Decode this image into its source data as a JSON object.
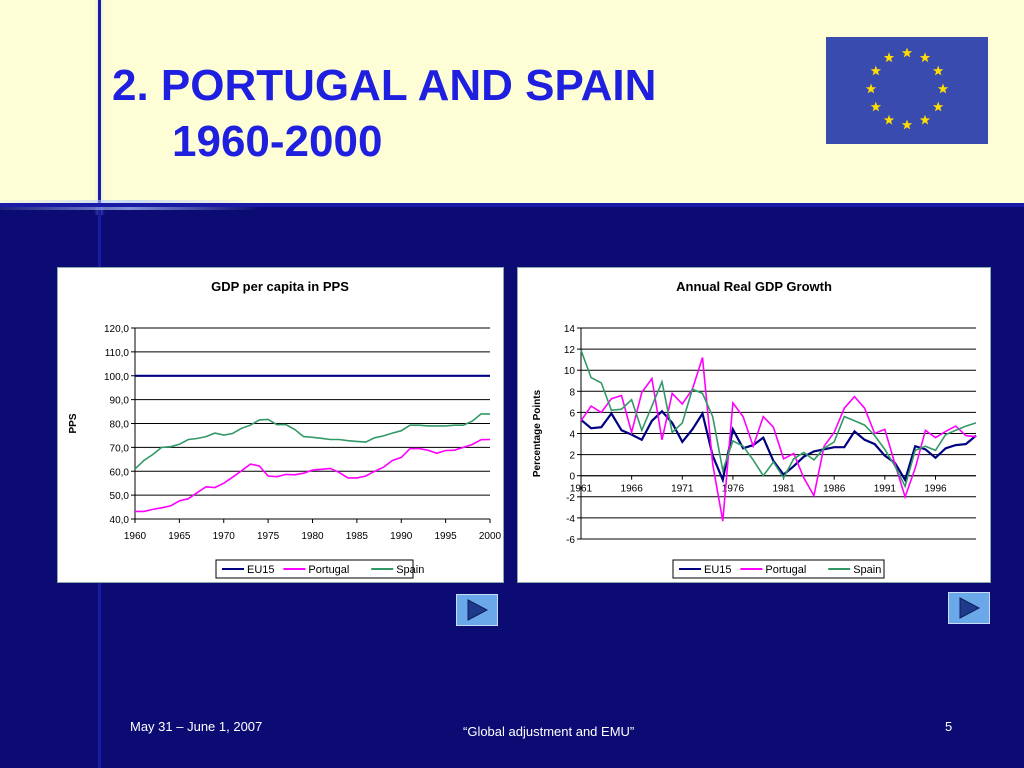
{
  "slide": {
    "title_line1": "2. PORTUGAL AND SPAIN",
    "title_line2": "1960-2000",
    "footer_date": "May 31 – June 1, 2007",
    "footer_center": "“Global adjustment and EMU”",
    "page_number": "5"
  },
  "colors": {
    "eu15": "#000080",
    "portugal": "#ff00ff",
    "spain": "#339966",
    "title": "#1f1fe0",
    "background": "#0b0b73",
    "header": "#fefed6",
    "flag": "#3a4bb0",
    "star": "#ffdd00"
  },
  "icons": {
    "flag": "eu-flag-icon",
    "nav1": "play-arrow-icon",
    "nav2": "play-arrow-icon"
  },
  "chart_data": [
    {
      "type": "line",
      "title": "GDP per capita in PPS",
      "xlabel": "",
      "ylabel": "PPS",
      "ylim": [
        40,
        120
      ],
      "yticks": [
        "40,0",
        "50,0",
        "60,0",
        "70,0",
        "80,0",
        "90,0",
        "100,0",
        "110,0",
        "120,0"
      ],
      "xticks": [
        "1960",
        "1965",
        "1970",
        "1975",
        "1980",
        "1985",
        "1990",
        "1995",
        "2000"
      ],
      "grid": true,
      "legend": "bottom",
      "x": [
        1960,
        1961,
        1962,
        1963,
        1964,
        1965,
        1966,
        1967,
        1968,
        1969,
        1970,
        1971,
        1972,
        1973,
        1974,
        1975,
        1976,
        1977,
        1978,
        1979,
        1980,
        1981,
        1982,
        1983,
        1984,
        1985,
        1986,
        1987,
        1988,
        1989,
        1990,
        1991,
        1992,
        1993,
        1994,
        1995,
        1996,
        1997,
        1998,
        1999,
        2000
      ],
      "series": [
        {
          "name": "EU15",
          "values": [
            100,
            100,
            100,
            100,
            100,
            100,
            100,
            100,
            100,
            100,
            100,
            100,
            100,
            100,
            100,
            100,
            100,
            100,
            100,
            100,
            100,
            100,
            100,
            100,
            100,
            100,
            100,
            100,
            100,
            100,
            100,
            100,
            100,
            100,
            100,
            100,
            100,
            100,
            100,
            100,
            100
          ]
        },
        {
          "name": "Portugal",
          "values": [
            43.2,
            43.2,
            44,
            44.7,
            45.5,
            47.6,
            48.5,
            51,
            53.5,
            53.2,
            55,
            57.5,
            60.2,
            63,
            62.2,
            58,
            57.7,
            58.7,
            58.5,
            59.2,
            60.5,
            60.8,
            61.2,
            59.5,
            57.2,
            57.2,
            58,
            60,
            61.7,
            64.5,
            65.8,
            69.5,
            69.5,
            68.8,
            67.5,
            68.7,
            68.8,
            70,
            71.2,
            73.2,
            73.3
          ]
        },
        {
          "name": "Spain",
          "values": [
            61,
            64.5,
            67,
            70,
            70.3,
            71.3,
            73.3,
            73.7,
            74.5,
            76,
            75.2,
            75.8,
            78,
            79.3,
            81.5,
            81.7,
            79.5,
            79.6,
            77.5,
            74.5,
            74.2,
            73.8,
            73.3,
            73.3,
            72.8,
            72.5,
            72.2,
            74,
            74.8,
            76,
            77,
            79.3,
            79.3,
            79,
            79,
            79,
            79.3,
            79.3,
            81,
            84,
            84
          ]
        }
      ]
    },
    {
      "type": "line",
      "title": "Annual Real GDP Growth",
      "xlabel": "",
      "ylabel": "Percentage Points",
      "ylim": [
        -6,
        14
      ],
      "yticks": [
        "-6",
        "-4",
        "-2",
        "0",
        "2",
        "4",
        "6",
        "8",
        "10",
        "12",
        "14"
      ],
      "xticks": [
        "1961",
        "1966",
        "1971",
        "1976",
        "1981",
        "1986",
        "1991",
        "1996"
      ],
      "grid": true,
      "legend": "bottom",
      "x": [
        1961,
        1962,
        1963,
        1964,
        1965,
        1966,
        1967,
        1968,
        1969,
        1970,
        1971,
        1972,
        1973,
        1974,
        1975,
        1976,
        1977,
        1978,
        1979,
        1980,
        1981,
        1982,
        1983,
        1984,
        1985,
        1986,
        1987,
        1988,
        1989,
        1990,
        1991,
        1992,
        1993,
        1994,
        1995,
        1996,
        1997,
        1998,
        1999,
        2000
      ],
      "series": [
        {
          "name": "EU15",
          "values": [
            5.3,
            4.5,
            4.6,
            5.9,
            4.3,
            3.9,
            3.4,
            5.2,
            6.1,
            5,
            3.2,
            4.4,
            5.9,
            1.9,
            -0.4,
            4.4,
            2.6,
            2.9,
            3.6,
            1.4,
            0.1,
            0.9,
            1.8,
            2.3,
            2.5,
            2.7,
            2.7,
            4.2,
            3.4,
            3,
            1.9,
            1.2,
            -0.4,
            2.8,
            2.5,
            1.7,
            2.6,
            2.9,
            3,
            3.8
          ]
        },
        {
          "name": "Portugal",
          "values": [
            5.2,
            6.6,
            6,
            7.3,
            7.6,
            4.1,
            7.9,
            9.2,
            3.4,
            7.8,
            6.8,
            8.2,
            11.2,
            1.1,
            -4.3,
            6.9,
            5.6,
            2.8,
            5.6,
            4.6,
            1.6,
            2.1,
            -0.2,
            -1.9,
            2.8,
            4.1,
            6.4,
            7.5,
            6.4,
            4,
            4.4,
            1.1,
            -2,
            0.7,
            4.3,
            3.6,
            4.2,
            4.7,
            3.8,
            3.7
          ]
        },
        {
          "name": "Spain",
          "values": [
            11.9,
            9.3,
            8.8,
            6.2,
            6.3,
            7.2,
            4.3,
            6.6,
            8.9,
            4.1,
            5,
            8.2,
            7.8,
            5.6,
            0.5,
            3.3,
            2.8,
            1.5,
            0,
            1.3,
            -0.2,
            1.6,
            2.2,
            1.5,
            2.6,
            3.2,
            5.6,
            5.2,
            4.8,
            3.8,
            2.5,
            0.9,
            -1,
            2.4,
            2.8,
            2.4,
            3.9,
            4.3,
            4.7,
            5
          ]
        }
      ]
    }
  ]
}
